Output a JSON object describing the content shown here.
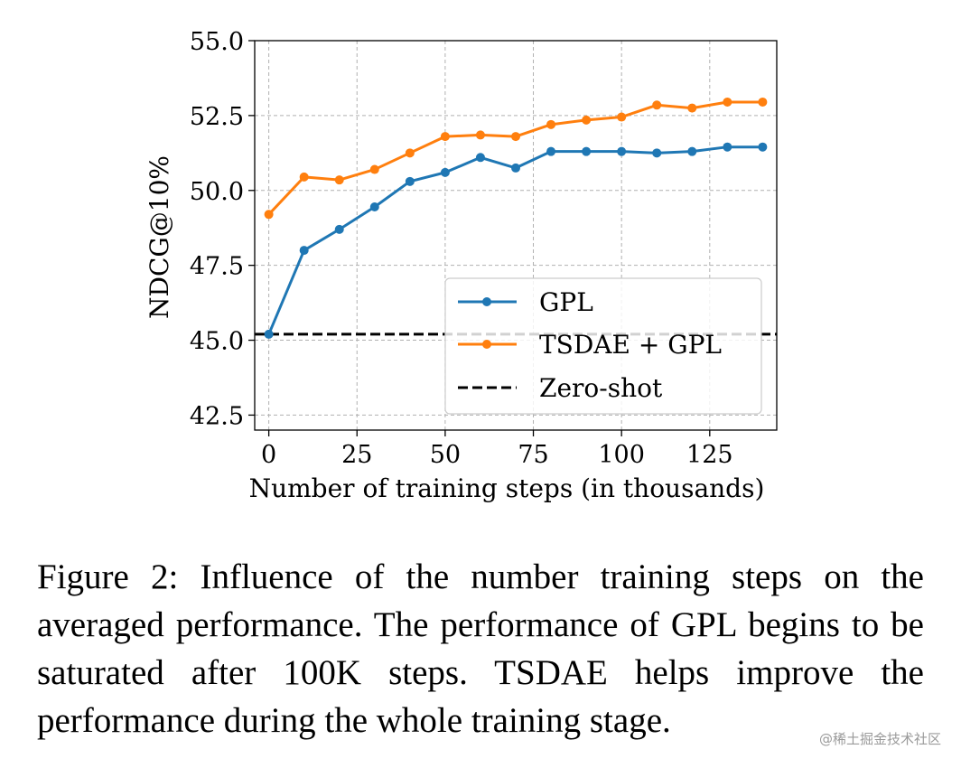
{
  "chart_data": {
    "type": "line",
    "xlabel": "Number of training steps (in thousands)",
    "ylabel": "NDCG@10%",
    "xlim": [
      -4,
      144
    ],
    "ylim": [
      42,
      55
    ],
    "xticks": [
      0,
      25,
      50,
      75,
      100,
      125
    ],
    "yticks": [
      42.5,
      45.0,
      47.5,
      50.0,
      52.5,
      55.0
    ],
    "xtick_labels": [
      "0",
      "25",
      "50",
      "75",
      "100",
      "125"
    ],
    "ytick_labels": [
      "42.5",
      "45.0",
      "47.5",
      "50.0",
      "52.5",
      "55.0"
    ],
    "grid": true,
    "legend_position": "lower-right",
    "series": [
      {
        "name": "GPL",
        "color": "#1f77b4",
        "style": "solid-marker",
        "x": [
          0,
          10,
          20,
          30,
          40,
          50,
          60,
          70,
          80,
          90,
          100,
          110,
          120,
          130,
          140
        ],
        "y": [
          45.2,
          48.0,
          48.7,
          49.45,
          50.3,
          50.6,
          51.1,
          50.75,
          51.3,
          51.3,
          51.3,
          51.25,
          51.3,
          51.45,
          51.45
        ]
      },
      {
        "name": "TSDAE + GPL",
        "color": "#ff7f0e",
        "style": "solid-marker",
        "x": [
          0,
          10,
          20,
          30,
          40,
          50,
          60,
          70,
          80,
          90,
          100,
          110,
          120,
          130,
          140
        ],
        "y": [
          49.2,
          50.45,
          50.35,
          50.7,
          51.25,
          51.8,
          51.85,
          51.8,
          52.2,
          52.35,
          52.45,
          52.85,
          52.75,
          52.95,
          52.95
        ]
      },
      {
        "name": "Zero-shot",
        "color": "#000000",
        "style": "dashed",
        "y_constant": 45.2
      }
    ]
  },
  "caption": "Figure 2: Influence of the number training steps on the averaged performance. The performance of GPL begins to be saturated after 100K steps. TSDAE helps improve the performance during the whole training stage.",
  "watermark": "@稀土掘金技术社区"
}
